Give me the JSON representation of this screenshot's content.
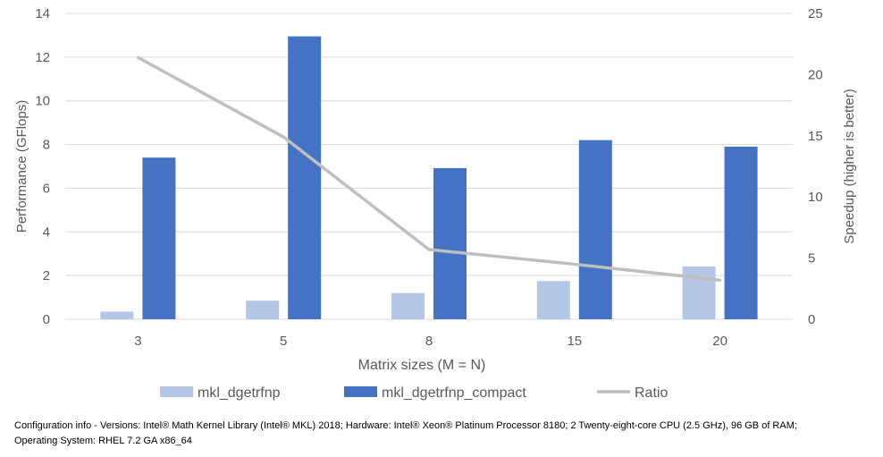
{
  "chart_data": {
    "type": "bar",
    "categories": [
      "3",
      "5",
      "8",
      "15",
      "20"
    ],
    "series": [
      {
        "name": "mkl_dgetrfnp",
        "kind": "bar",
        "axis": "left",
        "color": "#b4c7e7",
        "values": [
          0.35,
          0.85,
          1.2,
          1.75,
          2.42
        ]
      },
      {
        "name": "mkl_dgetrfnp_compact",
        "kind": "bar",
        "axis": "left",
        "color": "#4472c4",
        "values": [
          7.4,
          12.95,
          6.92,
          8.2,
          7.9
        ]
      },
      {
        "name": "Ratio",
        "kind": "line",
        "axis": "right",
        "color": "#bfbfbf",
        "values": [
          21.4,
          14.9,
          5.7,
          4.5,
          3.2
        ]
      }
    ],
    "xlabel": "Matrix sizes (M = N)",
    "ylabel": "Performance (GFlops)",
    "y2label": "Speedup (higher is better)",
    "ylim": [
      0,
      14
    ],
    "y2lim": [
      0,
      25
    ],
    "yticks": [
      "0",
      "2",
      "4",
      "6",
      "8",
      "10",
      "12",
      "14"
    ],
    "y2ticks": [
      "0",
      "5",
      "10",
      "15",
      "20",
      "25"
    ],
    "grid": true,
    "legend_position": "bottom"
  },
  "footnote": {
    "line1": "Configuration info - Versions: Intel® Math Kernel Library (Intel® MKL) 2018; Hardware: Intel® Xeon® Platinum Processor 8180; 2 Twenty-eight-core CPU (2.5 GHz), 96 GB of RAM;",
    "line2": "Operating System: RHEL 7.2 GA x86_64"
  },
  "colors": {
    "grid": "#d9d9d9",
    "axis_text": "#595959",
    "footnote_text": "#000000"
  }
}
